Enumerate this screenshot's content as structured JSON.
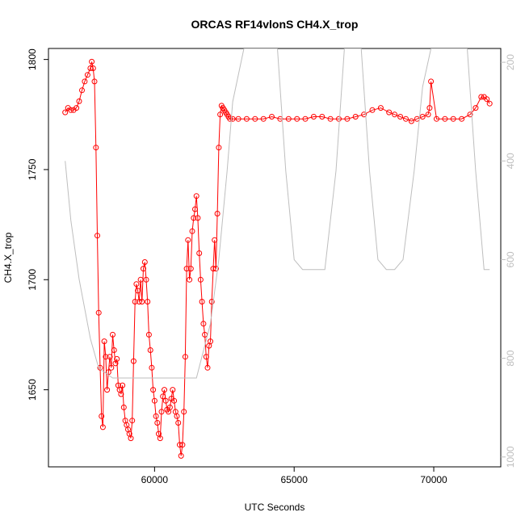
{
  "chart_data": {
    "type": "line",
    "title": "ORCAS RF14vlonS CH4.X_trop",
    "xlabel": "UTC Seconds",
    "ylabel": "CH4.X_trop",
    "xlim": [
      56200,
      72400
    ],
    "ylim": [
      1615,
      1805
    ],
    "x_ticks": [
      60000,
      65000,
      70000
    ],
    "x_tick_labels": [
      "60000",
      "65000",
      "70000"
    ],
    "y_ticks": [
      1650,
      1700,
      1750,
      1800
    ],
    "y_tick_labels": [
      "1650",
      "1700",
      "1750",
      "1800"
    ],
    "secondary_axis": {
      "side": "right",
      "range_top": 172,
      "range_bottom": 1020,
      "ticks": [
        200,
        400,
        600,
        800,
        1000
      ],
      "tick_labels": [
        "200",
        "400",
        "600",
        "800",
        "1000"
      ],
      "color": "#bebebe"
    },
    "grid": false,
    "series": [
      {
        "color": "#ff0000",
        "marker": "circle-open",
        "x": [
          56800,
          56900,
          57000,
          57100,
          57200,
          57300,
          57400,
          57500,
          57600,
          57700,
          57750,
          57800,
          57850,
          57900,
          57950,
          58000,
          58050,
          58100,
          58150,
          58200,
          58250,
          58300,
          58350,
          58400,
          58450,
          58500,
          58550,
          58600,
          58650,
          58700,
          58750,
          58800,
          58850,
          58900,
          58950,
          59000,
          59050,
          59100,
          59150,
          59200,
          59250,
          59300,
          59350,
          59400,
          59450,
          59500,
          59550,
          59600,
          59650,
          59700,
          59750,
          59800,
          59850,
          59900,
          59950,
          60000,
          60050,
          60100,
          60150,
          60200,
          60250,
          60300,
          60350,
          60400,
          60450,
          60500,
          60550,
          60600,
          60650,
          60700,
          60750,
          60800,
          60850,
          60900,
          60950,
          61000,
          61050,
          61100,
          61150,
          61200,
          61250,
          61300,
          61350,
          61400,
          61450,
          61500,
          61550,
          61600,
          61650,
          61700,
          61750,
          61800,
          61850,
          61900,
          61950,
          62000,
          62050,
          62100,
          62150,
          62200,
          62250,
          62300,
          62350,
          62400,
          62450,
          62500,
          62550,
          62600,
          62650,
          62700,
          62800,
          63000,
          63300,
          63600,
          63900,
          64200,
          64500,
          64800,
          65100,
          65400,
          65700,
          66000,
          66300,
          66600,
          66900,
          67200,
          67500,
          67800,
          68100,
          68400,
          68600,
          68800,
          69000,
          69200,
          69400,
          69600,
          69800,
          69850,
          69900,
          70100,
          70400,
          70700,
          71000,
          71300,
          71500,
          71700,
          71800,
          71900,
          72000
        ],
        "y": [
          1776,
          1778,
          1777,
          1777,
          1778,
          1781,
          1786,
          1790,
          1793,
          1796,
          1799,
          1796,
          1790,
          1760,
          1720,
          1685,
          1660,
          1638,
          1633,
          1672,
          1665,
          1650,
          1658,
          1665,
          1660,
          1675,
          1668,
          1662,
          1664,
          1652,
          1650,
          1648,
          1652,
          1642,
          1636,
          1634,
          1632,
          1630,
          1628,
          1636,
          1663,
          1690,
          1698,
          1695,
          1690,
          1700,
          1690,
          1705,
          1708,
          1700,
          1690,
          1675,
          1668,
          1660,
          1650,
          1645,
          1638,
          1635,
          1630,
          1628,
          1640,
          1647,
          1650,
          1645,
          1641,
          1640,
          1642,
          1646,
          1650,
          1645,
          1640,
          1638,
          1635,
          1625,
          1620,
          1625,
          1640,
          1665,
          1705,
          1718,
          1700,
          1705,
          1722,
          1728,
          1732,
          1738,
          1728,
          1712,
          1700,
          1690,
          1680,
          1675,
          1665,
          1660,
          1670,
          1672,
          1690,
          1705,
          1718,
          1705,
          1730,
          1760,
          1775,
          1779,
          1778,
          1777,
          1776,
          1775,
          1774,
          1773,
          1773,
          1773,
          1773,
          1773,
          1773,
          1774,
          1773,
          1773,
          1773,
          1773,
          1774,
          1774,
          1773,
          1773,
          1773,
          1774,
          1775,
          1777,
          1778,
          1776,
          1775,
          1774,
          1773,
          1772,
          1773,
          1774,
          1775,
          1778,
          1790,
          1773,
          1773,
          1773,
          1773,
          1775,
          1778,
          1783,
          1783,
          1782,
          1780
        ]
      },
      {
        "color": "#bebebe",
        "axis": "secondary",
        "x": [
          56800,
          57000,
          57300,
          57700,
          58000,
          58500,
          59000,
          60000,
          61000,
          61500,
          62000,
          62300,
          62600,
          62800,
          63200,
          63500,
          63800,
          64100,
          64400,
          64700,
          65000,
          65300,
          65600,
          66100,
          66500,
          66800,
          67100,
          67400,
          67700,
          68000,
          68300,
          68600,
          68900,
          69300,
          69600,
          69900,
          70200,
          70600,
          70900,
          71200,
          71500,
          71800,
          72000
        ],
        "y": [
          400,
          520,
          640,
          760,
          820,
          840,
          840,
          840,
          840,
          840,
          730,
          600,
          420,
          280,
          172,
          172,
          172,
          172,
          172,
          420,
          600,
          620,
          620,
          620,
          420,
          172,
          172,
          172,
          420,
          600,
          620,
          620,
          600,
          420,
          250,
          172,
          172,
          172,
          172,
          172,
          420,
          620,
          620
        ]
      }
    ]
  }
}
